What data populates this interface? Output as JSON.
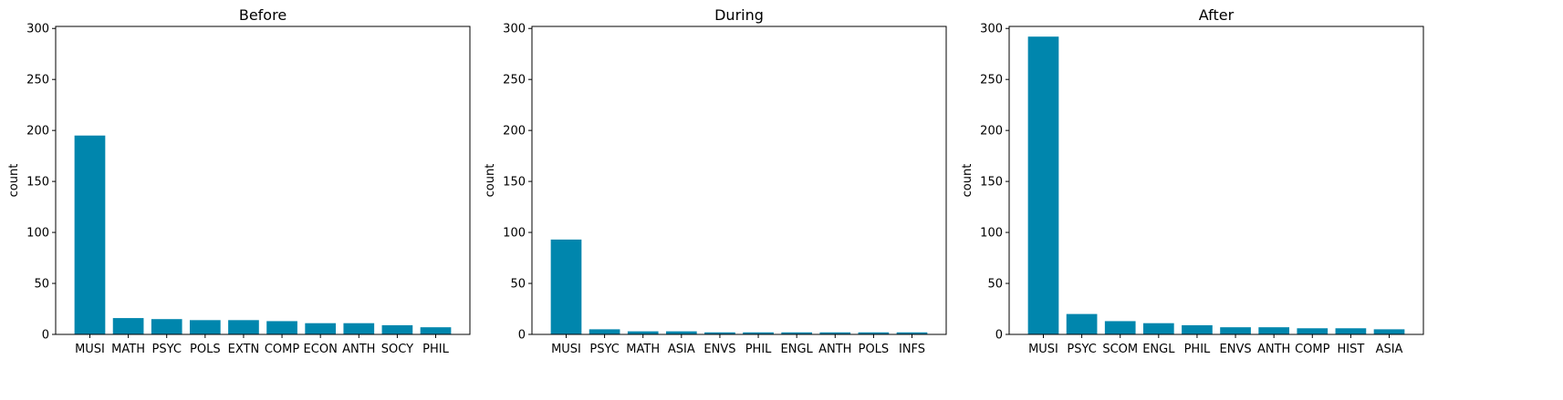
{
  "figure": {
    "bar_color": "#0086ad",
    "axis_color": "#000000",
    "background": "#ffffff"
  },
  "chart_data": [
    {
      "type": "bar",
      "title": "Before",
      "xlabel": "",
      "ylabel": "count",
      "ylim": [
        0,
        302
      ],
      "yticks": [
        0,
        50,
        100,
        150,
        200,
        250,
        300
      ],
      "grid": false,
      "categories": [
        "MUSI",
        "MATH",
        "PSYC",
        "POLS",
        "EXTN",
        "COMP",
        "ECON",
        "ANTH",
        "SOCY",
        "PHIL"
      ],
      "values": [
        195,
        16,
        15,
        14,
        14,
        13,
        11,
        11,
        9,
        7
      ]
    },
    {
      "type": "bar",
      "title": "During",
      "xlabel": "",
      "ylabel": "count",
      "ylim": [
        0,
        302
      ],
      "yticks": [
        0,
        50,
        100,
        150,
        200,
        250,
        300
      ],
      "grid": false,
      "categories": [
        "MUSI",
        "PSYC",
        "MATH",
        "ASIA",
        "ENVS",
        "PHIL",
        "ENGL",
        "ANTH",
        "POLS",
        "INFS"
      ],
      "values": [
        93,
        5,
        3,
        3,
        2,
        2,
        2,
        2,
        2,
        2
      ]
    },
    {
      "type": "bar",
      "title": "After",
      "xlabel": "",
      "ylabel": "count",
      "ylim": [
        0,
        302
      ],
      "yticks": [
        0,
        50,
        100,
        150,
        200,
        250,
        300
      ],
      "grid": false,
      "categories": [
        "MUSI",
        "PSYC",
        "SCOM",
        "ENGL",
        "PHIL",
        "ENVS",
        "ANTH",
        "COMP",
        "HIST",
        "ASIA"
      ],
      "values": [
        292,
        20,
        13,
        11,
        9,
        7,
        7,
        6,
        6,
        5
      ]
    }
  ]
}
